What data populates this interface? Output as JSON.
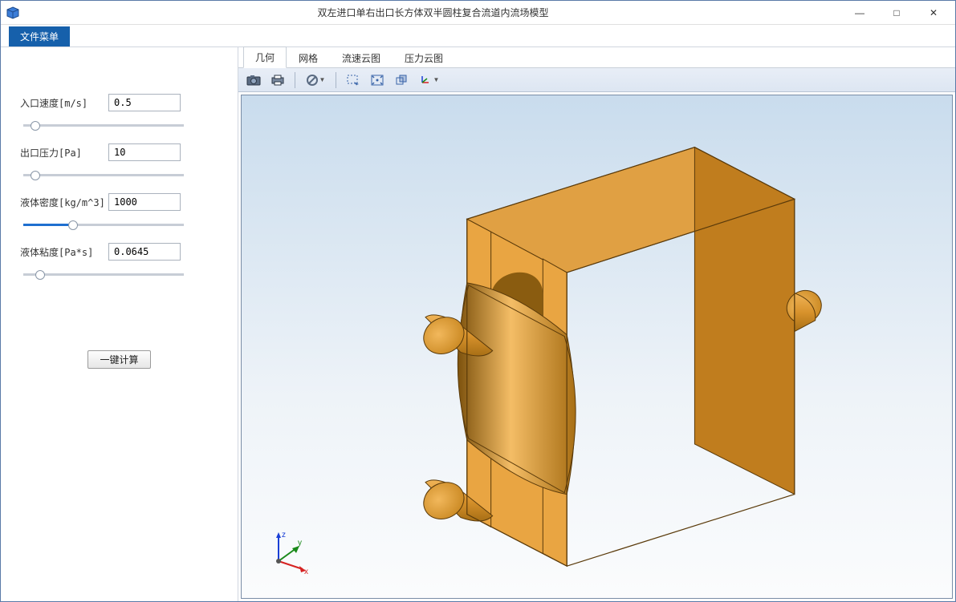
{
  "window": {
    "title": "双左进口单右出口长方体双半圆柱复合流道内流场模型",
    "minimize": "—",
    "maximize": "□",
    "close": "✕"
  },
  "menubar": {
    "file_menu": "文件菜单"
  },
  "sidebar": {
    "params": [
      {
        "label": "入口速度[m/s]",
        "value": "0.5",
        "slider_pct": 5,
        "blue": false
      },
      {
        "label": "出口压力[Pa]",
        "value": "10",
        "slider_pct": 5,
        "blue": false
      },
      {
        "label": "液体密度[kg/m^3]",
        "value": "1000",
        "slider_pct": 30,
        "blue": true
      },
      {
        "label": "液体粘度[Pa*s]",
        "value": "0.0645",
        "slider_pct": 8,
        "blue": false
      }
    ],
    "compute_btn": "一键计算"
  },
  "tabs": {
    "items": [
      "几何",
      "网格",
      "流速云图",
      "压力云图"
    ],
    "active_index": 0
  },
  "toolbar": {
    "icons": [
      "camera-icon",
      "print-icon",
      "forbid-icon",
      "sep",
      "select-rect-icon",
      "fit-icon",
      "transparency-icon",
      "axes-icon"
    ]
  },
  "axes3d": {
    "x_label": "x",
    "y_label": "y",
    "z_label": "z",
    "x_color": "#d62222",
    "y_color": "#1a8a1a",
    "z_color": "#1a3fd6"
  },
  "model_colors": {
    "top": "#e0a043",
    "front_light": "#e9a542",
    "front_dark": "#d8922c",
    "side": "#c07d1e",
    "edge": "#5a3a0a",
    "inner_dark": "#8a5c10",
    "inner_light": "#f2b85c"
  }
}
